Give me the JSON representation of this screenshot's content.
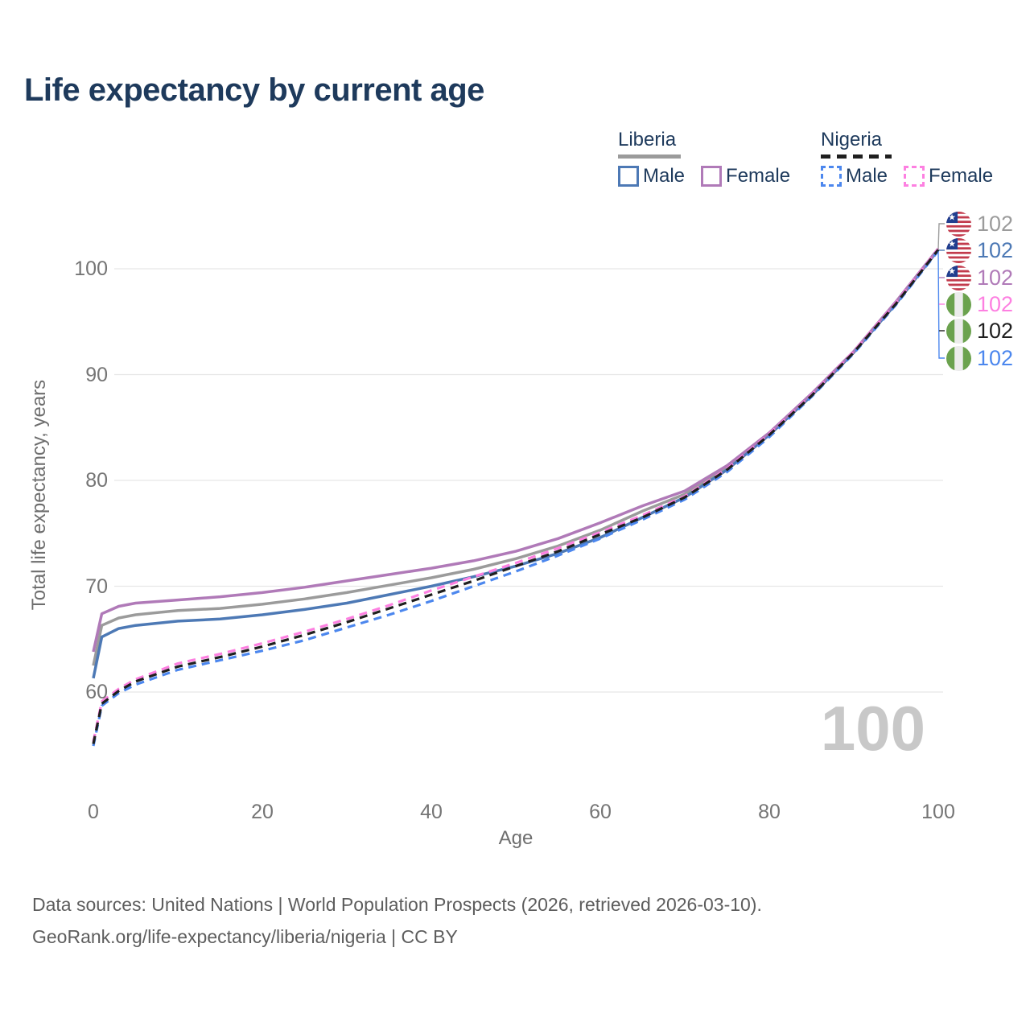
{
  "title": "Life expectancy by current age",
  "legend": {
    "groups": [
      {
        "country": "Liberia",
        "line_style": "solid",
        "underline_color": "#9b9b9b",
        "items": [
          {
            "label": "Male",
            "color": "#4d79b5",
            "dashed": false
          },
          {
            "label": "Female",
            "color": "#b07ab8",
            "dashed": false
          }
        ]
      },
      {
        "country": "Nigeria",
        "line_style": "dashed",
        "underline_color": "#1f1f1f",
        "items": [
          {
            "label": "Male",
            "color": "#4c87ee",
            "dashed": true
          },
          {
            "label": "Female",
            "color": "#fd80e1",
            "dashed": true
          }
        ]
      }
    ]
  },
  "chart_data": {
    "type": "line",
    "title": "Life expectancy by current age",
    "xlabel": "Age",
    "ylabel": "Total life expectancy, years",
    "xticks": [
      0,
      20,
      40,
      60,
      80,
      100
    ],
    "yticks": [
      100,
      90,
      80,
      70,
      60
    ],
    "xlim": [
      0,
      100
    ],
    "ylim": [
      53,
      103
    ],
    "grid": "horizontal",
    "gridline_color": "#e7e7e7",
    "series": [
      {
        "key": "liberia_both",
        "name": "Liberia Both sexes",
        "color": "#9b9b9b",
        "dashed": false,
        "points": [
          [
            0,
            62.5
          ],
          [
            1,
            66.3
          ],
          [
            3,
            67.0
          ],
          [
            5,
            67.3
          ],
          [
            10,
            67.7
          ],
          [
            15,
            67.9
          ],
          [
            20,
            68.3
          ],
          [
            25,
            68.8
          ],
          [
            30,
            69.4
          ],
          [
            35,
            70.1
          ],
          [
            40,
            70.8
          ],
          [
            45,
            71.6
          ],
          [
            50,
            72.6
          ],
          [
            55,
            73.8
          ],
          [
            60,
            75.3
          ],
          [
            65,
            77.1
          ],
          [
            70,
            78.7
          ],
          [
            75,
            81.2
          ],
          [
            80,
            84.4
          ],
          [
            85,
            88.1
          ],
          [
            90,
            92.1
          ],
          [
            95,
            96.8
          ],
          [
            100,
            101.8
          ]
        ]
      },
      {
        "key": "liberia_male",
        "name": "Liberia Male",
        "color": "#4d79b5",
        "dashed": false,
        "points": [
          [
            0,
            61.3
          ],
          [
            1,
            65.2
          ],
          [
            3,
            66.0
          ],
          [
            5,
            66.3
          ],
          [
            10,
            66.7
          ],
          [
            15,
            66.9
          ],
          [
            20,
            67.3
          ],
          [
            25,
            67.8
          ],
          [
            30,
            68.4
          ],
          [
            35,
            69.2
          ],
          [
            40,
            70.0
          ],
          [
            45,
            70.9
          ],
          [
            50,
            71.9
          ],
          [
            55,
            73.1
          ],
          [
            60,
            74.6
          ],
          [
            65,
            76.5
          ],
          [
            70,
            78.4
          ],
          [
            75,
            81.0
          ],
          [
            80,
            84.3
          ],
          [
            85,
            88.0
          ],
          [
            90,
            92.1
          ],
          [
            95,
            96.7
          ],
          [
            100,
            101.8
          ]
        ]
      },
      {
        "key": "liberia_female",
        "name": "Liberia Female",
        "color": "#b07ab8",
        "dashed": false,
        "points": [
          [
            0,
            63.8
          ],
          [
            1,
            67.4
          ],
          [
            3,
            68.1
          ],
          [
            5,
            68.4
          ],
          [
            10,
            68.7
          ],
          [
            15,
            69.0
          ],
          [
            20,
            69.4
          ],
          [
            25,
            69.9
          ],
          [
            30,
            70.5
          ],
          [
            35,
            71.1
          ],
          [
            40,
            71.7
          ],
          [
            45,
            72.4
          ],
          [
            50,
            73.3
          ],
          [
            55,
            74.5
          ],
          [
            60,
            76.0
          ],
          [
            65,
            77.6
          ],
          [
            70,
            79.0
          ],
          [
            75,
            81.4
          ],
          [
            80,
            84.5
          ],
          [
            85,
            88.2
          ],
          [
            90,
            92.2
          ],
          [
            95,
            96.9
          ],
          [
            100,
            101.9
          ]
        ]
      },
      {
        "key": "nigeria_male",
        "name": "Nigeria Male",
        "color": "#4c87ee",
        "dashed": true,
        "points": [
          [
            0,
            54.9
          ],
          [
            1,
            58.7
          ],
          [
            3,
            59.9
          ],
          [
            5,
            60.7
          ],
          [
            10,
            62.1
          ],
          [
            15,
            63.0
          ],
          [
            20,
            63.9
          ],
          [
            25,
            64.9
          ],
          [
            30,
            66.1
          ],
          [
            35,
            67.3
          ],
          [
            40,
            68.6
          ],
          [
            45,
            70.0
          ],
          [
            50,
            71.4
          ],
          [
            55,
            72.9
          ],
          [
            60,
            74.5
          ],
          [
            65,
            76.3
          ],
          [
            70,
            78.2
          ],
          [
            75,
            80.8
          ],
          [
            80,
            84.1
          ],
          [
            85,
            87.9
          ],
          [
            90,
            92.0
          ],
          [
            95,
            96.6
          ],
          [
            100,
            101.7
          ]
        ]
      },
      {
        "key": "nigeria_female",
        "name": "Nigeria Female",
        "color": "#fd80e1",
        "dashed": true,
        "points": [
          [
            0,
            55.3
          ],
          [
            1,
            59.1
          ],
          [
            3,
            60.3
          ],
          [
            5,
            61.2
          ],
          [
            10,
            62.7
          ],
          [
            15,
            63.6
          ],
          [
            20,
            64.6
          ],
          [
            25,
            65.7
          ],
          [
            30,
            66.9
          ],
          [
            35,
            68.2
          ],
          [
            40,
            69.6
          ],
          [
            45,
            70.9
          ],
          [
            50,
            72.2
          ],
          [
            55,
            73.6
          ],
          [
            60,
            75.1
          ],
          [
            65,
            76.7
          ],
          [
            70,
            78.5
          ],
          [
            75,
            81.1
          ],
          [
            80,
            84.4
          ],
          [
            85,
            88.1
          ],
          [
            90,
            92.2
          ],
          [
            95,
            96.8
          ],
          [
            100,
            101.9
          ]
        ]
      },
      {
        "key": "nigeria_both",
        "name": "Nigeria Both sexes",
        "color": "#1f1f1f",
        "dashed": true,
        "points": [
          [
            0,
            55.1
          ],
          [
            1,
            58.9
          ],
          [
            3,
            60.1
          ],
          [
            5,
            61.0
          ],
          [
            10,
            62.4
          ],
          [
            15,
            63.3
          ],
          [
            20,
            64.3
          ],
          [
            25,
            65.4
          ],
          [
            30,
            66.6
          ],
          [
            35,
            67.9
          ],
          [
            40,
            69.2
          ],
          [
            45,
            70.5
          ],
          [
            50,
            71.9
          ],
          [
            55,
            73.3
          ],
          [
            60,
            74.9
          ],
          [
            65,
            76.5
          ],
          [
            70,
            78.4
          ],
          [
            75,
            81.0
          ],
          [
            80,
            84.3
          ],
          [
            85,
            88.0
          ],
          [
            90,
            92.1
          ],
          [
            95,
            96.7
          ],
          [
            100,
            101.8
          ]
        ]
      }
    ]
  },
  "end_labels": [
    {
      "flag": "liberia",
      "value": "102",
      "color": "#9b9b9b"
    },
    {
      "flag": "liberia",
      "value": "102",
      "color": "#4d79b5"
    },
    {
      "flag": "liberia",
      "value": "102",
      "color": "#b07ab8"
    },
    {
      "flag": "nigeria",
      "value": "102",
      "color": "#fd80e1"
    },
    {
      "flag": "nigeria",
      "value": "102",
      "color": "#1f1f1f"
    },
    {
      "flag": "nigeria",
      "value": "102",
      "color": "#4c87ee"
    }
  ],
  "watermark": "100",
  "footer": {
    "line1": "Data sources: United Nations | World Population Prospects (2026, retrieved 2026-03-10).",
    "line2": "GeoRank.org/life-expectancy/liberia/nigeria | CC BY"
  }
}
